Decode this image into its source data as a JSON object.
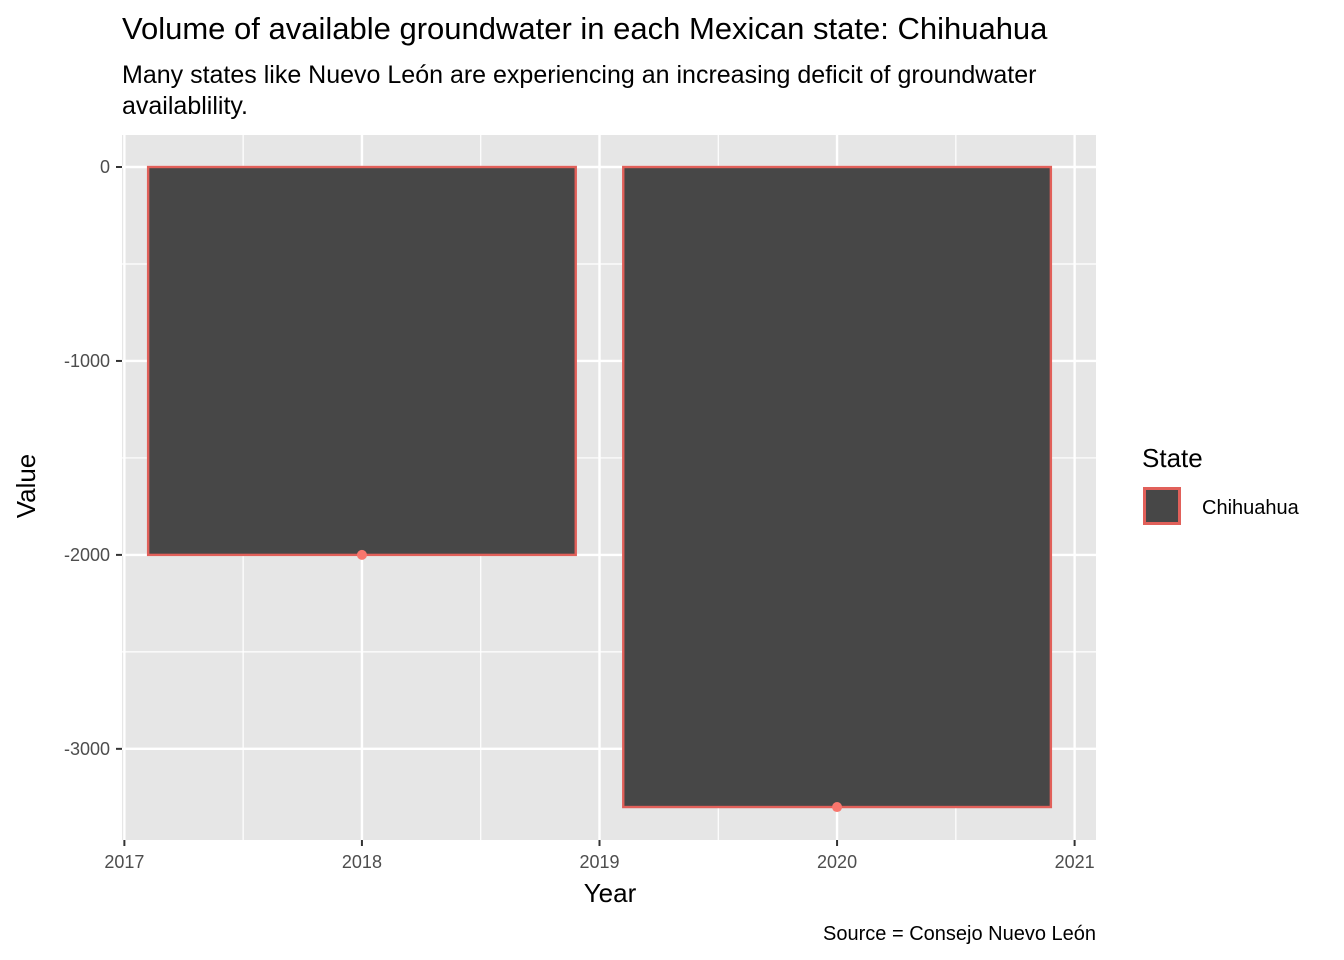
{
  "chart_data": {
    "type": "bar",
    "title": "Volume of available groundwater in each Mexican state: Chihuahua",
    "subtitle": "Many states like Nuevo León are experiencing an increasing deficit of groundwater availablility.",
    "caption": "Source = Consejo Nuevo León",
    "xlabel": "Year",
    "ylabel": "Value",
    "x": [
      2018,
      2020
    ],
    "series": [
      {
        "name": "Chihuahua",
        "values": [
          -2000,
          -3300
        ]
      }
    ],
    "xlim": [
      2016.99,
      2021.09
    ],
    "ylim": [
      -3470,
      165
    ],
    "x_ticks": [
      2017,
      2018,
      2019,
      2020,
      2021
    ],
    "y_ticks": [
      0,
      -1000,
      -2000,
      -3000
    ],
    "bar_width_years": 1.8,
    "legend": {
      "title": "State",
      "placement": "right"
    },
    "colors": {
      "bar_fill": "#474747",
      "bar_outline": "#e1605a",
      "point": "#f8766d",
      "panel": "#e6e6e6",
      "grid": "#ffffff"
    },
    "grid": true
  }
}
